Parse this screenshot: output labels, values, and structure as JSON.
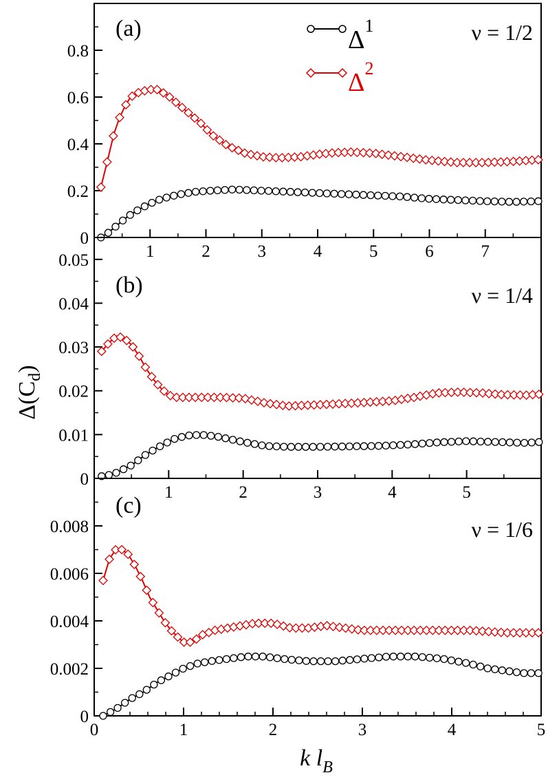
{
  "chart_data": {
    "type": "line",
    "ylabel": "Δ(C_d)",
    "ylabel_main": "Δ(C",
    "ylabel_sub": "d",
    "ylabel_close": ")",
    "xlabel_k": "k l",
    "xlabel_sub": "B",
    "colors": {
      "delta1": "#000000",
      "delta2": "#e00000"
    },
    "legend": [
      {
        "name": "Δ",
        "sup": "1",
        "series": "delta1"
      },
      {
        "name": "Δ",
        "sup": "2",
        "series": "delta2"
      }
    ],
    "panels": [
      {
        "id": "a",
        "label": "(a)",
        "nu": "ν = 1/2",
        "xlim": [
          0,
          8
        ],
        "ylim": [
          0,
          1.0
        ],
        "xticks": [
          "1",
          "2",
          "3",
          "4",
          "5",
          "6",
          "7"
        ],
        "xtick_values": [
          1,
          2,
          3,
          4,
          5,
          6,
          7
        ],
        "yticks": [
          "0",
          "0.2",
          "0.4",
          "0.6",
          "0.8"
        ],
        "ytick_values": [
          0,
          0.2,
          0.4,
          0.6,
          0.8
        ],
        "series": [
          {
            "name": "Δ1",
            "key": "delta1",
            "x": [
              0.12,
              0.25,
              0.4,
              0.6,
              0.8,
              1.0,
              1.2,
              1.5,
              1.8,
              2.1,
              2.5,
              3.0,
              3.5,
              4.0,
              4.5,
              5.0,
              5.5,
              6.0,
              6.5,
              7.0,
              7.5,
              7.95
            ],
            "y": [
              0.0,
              0.02,
              0.05,
              0.09,
              0.12,
              0.145,
              0.165,
              0.183,
              0.195,
              0.2,
              0.205,
              0.2,
              0.195,
              0.19,
              0.185,
              0.18,
              0.175,
              0.165,
              0.16,
              0.155,
              0.152,
              0.155
            ]
          },
          {
            "name": "Δ2",
            "key": "delta2",
            "x": [
              0.12,
              0.25,
              0.35,
              0.45,
              0.55,
              0.65,
              0.8,
              0.95,
              1.1,
              1.3,
              1.5,
              1.7,
              1.9,
              2.1,
              2.4,
              2.7,
              3.0,
              3.3,
              3.7,
              4.0,
              4.3,
              4.6,
              5.0,
              5.5,
              6.0,
              6.5,
              7.0,
              7.5,
              7.95
            ],
            "y": [
              0.215,
              0.34,
              0.44,
              0.51,
              0.56,
              0.6,
              0.62,
              0.63,
              0.635,
              0.61,
              0.57,
              0.53,
              0.49,
              0.44,
              0.39,
              0.36,
              0.345,
              0.34,
              0.345,
              0.355,
              0.362,
              0.365,
              0.36,
              0.345,
              0.33,
              0.32,
              0.32,
              0.325,
              0.332
            ]
          }
        ]
      },
      {
        "id": "b",
        "label": "(b)",
        "nu": "ν = 1/4",
        "xlim": [
          0,
          6
        ],
        "ylim": [
          0,
          0.055
        ],
        "xticks": [
          "1",
          "2",
          "3",
          "4",
          "5"
        ],
        "xtick_values": [
          1,
          2,
          3,
          4,
          5
        ],
        "yticks": [
          "0",
          "0.01",
          "0.02",
          "0.03",
          "0.04",
          "0.05"
        ],
        "ytick_values": [
          0,
          0.01,
          0.02,
          0.03,
          0.04,
          0.05
        ],
        "series": [
          {
            "name": "Δ1",
            "key": "delta1",
            "x": [
              0.1,
              0.2,
              0.3,
              0.5,
              0.7,
              0.9,
              1.1,
              1.3,
              1.5,
              1.7,
              2.0,
              2.3,
              2.6,
              3.0,
              3.4,
              3.8,
              4.2,
              4.6,
              5.0,
              5.4,
              5.8,
              5.97
            ],
            "y": [
              0.0005,
              0.0008,
              0.0013,
              0.003,
              0.0055,
              0.0075,
              0.0092,
              0.0099,
              0.0099,
              0.0094,
              0.0083,
              0.0074,
              0.0072,
              0.0072,
              0.0073,
              0.0074,
              0.0077,
              0.0082,
              0.0085,
              0.0083,
              0.0081,
              0.0083
            ]
          },
          {
            "name": "Δ2",
            "key": "delta2",
            "x": [
              0.1,
              0.2,
              0.3,
              0.4,
              0.5,
              0.6,
              0.7,
              0.8,
              0.9,
              1.0,
              1.1,
              1.2,
              1.4,
              1.7,
              2.0,
              2.3,
              2.6,
              3.0,
              3.5,
              4.0,
              4.3,
              4.6,
              4.9,
              5.2,
              5.5,
              5.8,
              5.97
            ],
            "y": [
              0.029,
              0.031,
              0.0325,
              0.032,
              0.0305,
              0.028,
              0.025,
              0.0225,
              0.0205,
              0.019,
              0.0185,
              0.0185,
              0.0185,
              0.0185,
              0.0183,
              0.0172,
              0.0165,
              0.0168,
              0.0172,
              0.0177,
              0.0185,
              0.0195,
              0.0197,
              0.0195,
              0.0191,
              0.019,
              0.0192
            ]
          }
        ]
      },
      {
        "id": "c",
        "label": "(c)",
        "nu": "ν = 1/6",
        "xlim": [
          0,
          5
        ],
        "ylim": [
          0,
          0.01
        ],
        "xticks": [
          "0",
          "1",
          "2",
          "3",
          "4",
          "5"
        ],
        "xtick_values": [
          0,
          1,
          2,
          3,
          4,
          5
        ],
        "yticks": [
          "0",
          "0.002",
          "0.004",
          "0.006",
          "0.008"
        ],
        "ytick_values": [
          0,
          0.002,
          0.004,
          0.006,
          0.008
        ],
        "series": [
          {
            "name": "Δ1",
            "key": "delta1",
            "x": [
              0.1,
              0.25,
              0.4,
              0.55,
              0.7,
              0.85,
              1.0,
              1.15,
              1.3,
              1.5,
              1.7,
              1.9,
              2.1,
              2.4,
              2.7,
              3.0,
              3.3,
              3.6,
              3.9,
              4.2,
              4.4,
              4.6,
              4.8,
              4.97
            ],
            "y": [
              0.0,
              0.0003,
              0.0007,
              0.001,
              0.0014,
              0.0017,
              0.002,
              0.0022,
              0.0023,
              0.0024,
              0.0025,
              0.0025,
              0.0024,
              0.0023,
              0.0023,
              0.0024,
              0.0025,
              0.0025,
              0.0024,
              0.0022,
              0.002,
              0.0019,
              0.0018,
              0.0018
            ]
          },
          {
            "name": "Δ2",
            "key": "delta2",
            "x": [
              0.1,
              0.17,
              0.24,
              0.31,
              0.38,
              0.46,
              0.54,
              0.62,
              0.7,
              0.78,
              0.86,
              0.94,
              1.0,
              1.1,
              1.2,
              1.35,
              1.5,
              1.65,
              1.8,
              2.0,
              2.2,
              2.4,
              2.6,
              2.8,
              3.0,
              3.4,
              3.8,
              4.2,
              4.6,
              4.97
            ],
            "y": [
              0.0057,
              0.0066,
              0.007,
              0.007,
              0.0068,
              0.0063,
              0.0057,
              0.005,
              0.0045,
              0.004,
              0.0036,
              0.0033,
              0.0031,
              0.0031,
              0.0034,
              0.0036,
              0.0037,
              0.0038,
              0.0039,
              0.0039,
              0.0037,
              0.0037,
              0.0038,
              0.0037,
              0.0036,
              0.0036,
              0.0036,
              0.0036,
              0.0035,
              0.0035
            ]
          }
        ]
      }
    ]
  }
}
